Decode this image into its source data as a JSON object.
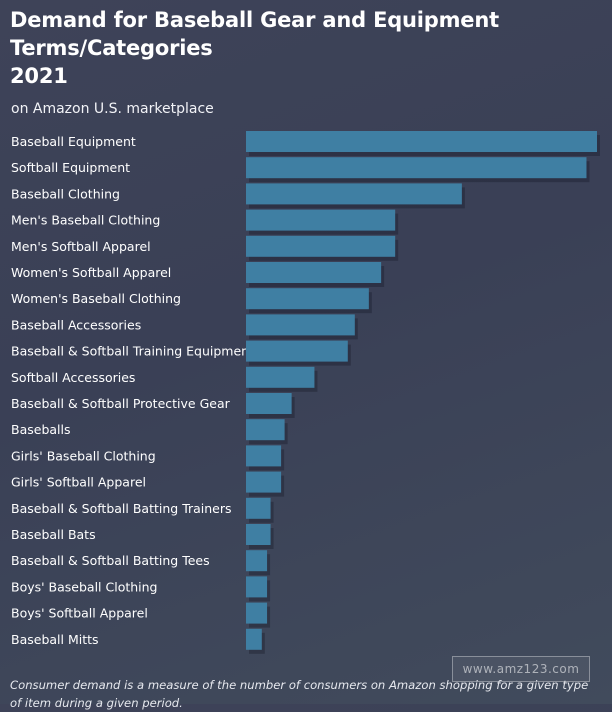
{
  "chart_data": {
    "type": "bar",
    "orientation": "horizontal",
    "title_lines": [
      "Demand for Baseball Gear and Equipment",
      "Terms/Categories",
      "2021"
    ],
    "subtitle": "on Amazon U.S. marketplace",
    "xlabel": "",
    "ylabel": "",
    "categories": [
      "Baseball Equipment",
      "Softball Equipment",
      "Baseball Clothing",
      "Men's Baseball Clothing",
      "Men's Softball Apparel",
      "Women's Softball Apparel",
      "Women's Baseball Clothing",
      "Baseball Accessories",
      "Baseball & Softball Training Equipment",
      "Softball Accessories",
      "Baseball & Softball Protective Gear",
      "Baseballs",
      "Girls' Baseball Clothing",
      "Girls' Softball Apparel",
      "Baseball & Softball Batting Trainers",
      "Baseball Bats",
      "Baseball & Softball Batting Tees",
      "Boys' Baseball Clothing",
      "Boys' Softball Apparel",
      "Baseball Mitts"
    ],
    "values": [
      100,
      97,
      61.5,
      42.5,
      42.5,
      38.5,
      35,
      31,
      29,
      19.5,
      13,
      11,
      10,
      10,
      7,
      7,
      6,
      6,
      6,
      4.5
    ],
    "xlim": [
      0,
      100
    ],
    "grid": false,
    "legend": "none",
    "bar_color": "#3f7fa3"
  },
  "watermark": "www.amz123.com",
  "footnote": "Consumer demand is a measure of the number of consumers on Amazon shopping for a given type of item during a given period."
}
